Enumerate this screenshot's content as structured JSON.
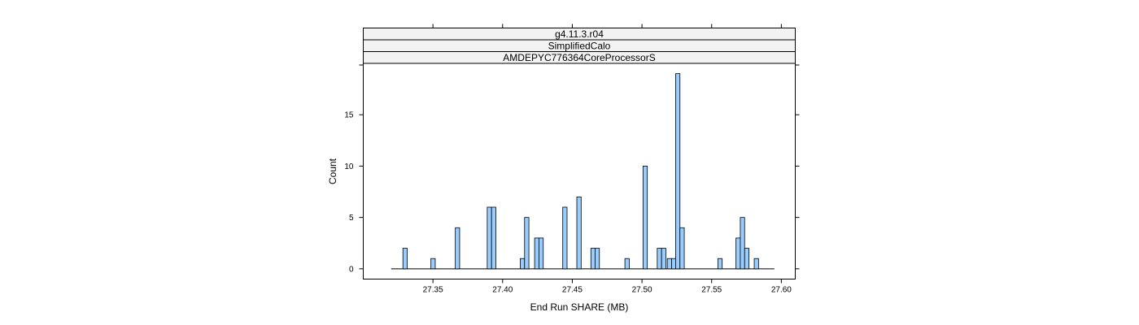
{
  "chart_data": {
    "type": "bar",
    "strips": [
      "g4.11.3.r04",
      "SimplifiedCalo",
      "AMDEPYC776364CoreProcessorS"
    ],
    "xlabel": "End Run SHARE (MB)",
    "ylabel": "Count",
    "xlim": [
      27.3,
      27.61
    ],
    "ylim": [
      -1,
      20
    ],
    "x_ticks": [
      27.35,
      27.4,
      27.45,
      27.5,
      27.55,
      27.6
    ],
    "x_tick_labels": [
      "27.35",
      "27.40",
      "27.45",
      "27.50",
      "27.55",
      "27.60"
    ],
    "y_ticks": [
      0,
      5,
      10,
      15
    ],
    "y_tick_labels": [
      "0",
      "5",
      "10",
      "15"
    ],
    "baseline_range": [
      27.32,
      27.595
    ],
    "bin_width": 0.0031,
    "bars": [
      {
        "x": 27.33,
        "count": 2
      },
      {
        "x": 27.3501,
        "count": 1
      },
      {
        "x": 27.3676,
        "count": 4
      },
      {
        "x": 27.3905,
        "count": 6
      },
      {
        "x": 27.3936,
        "count": 6
      },
      {
        "x": 27.4142,
        "count": 1
      },
      {
        "x": 27.4173,
        "count": 5
      },
      {
        "x": 27.4245,
        "count": 3
      },
      {
        "x": 27.4276,
        "count": 3
      },
      {
        "x": 27.4447,
        "count": 6
      },
      {
        "x": 27.4548,
        "count": 7
      },
      {
        "x": 27.4649,
        "count": 2
      },
      {
        "x": 27.4679,
        "count": 2
      },
      {
        "x": 27.4893,
        "count": 1
      },
      {
        "x": 27.5023,
        "count": 10
      },
      {
        "x": 27.5125,
        "count": 2
      },
      {
        "x": 27.5156,
        "count": 2
      },
      {
        "x": 27.5197,
        "count": 1
      },
      {
        "x": 27.5228,
        "count": 1
      },
      {
        "x": 27.5257,
        "count": 19
      },
      {
        "x": 27.5288,
        "count": 4
      },
      {
        "x": 27.556,
        "count": 1
      },
      {
        "x": 27.569,
        "count": 3
      },
      {
        "x": 27.5721,
        "count": 5
      },
      {
        "x": 27.5752,
        "count": 2
      },
      {
        "x": 27.5821,
        "count": 1
      }
    ],
    "bar_color": "#99ccff",
    "grid": false,
    "legend": "none"
  }
}
